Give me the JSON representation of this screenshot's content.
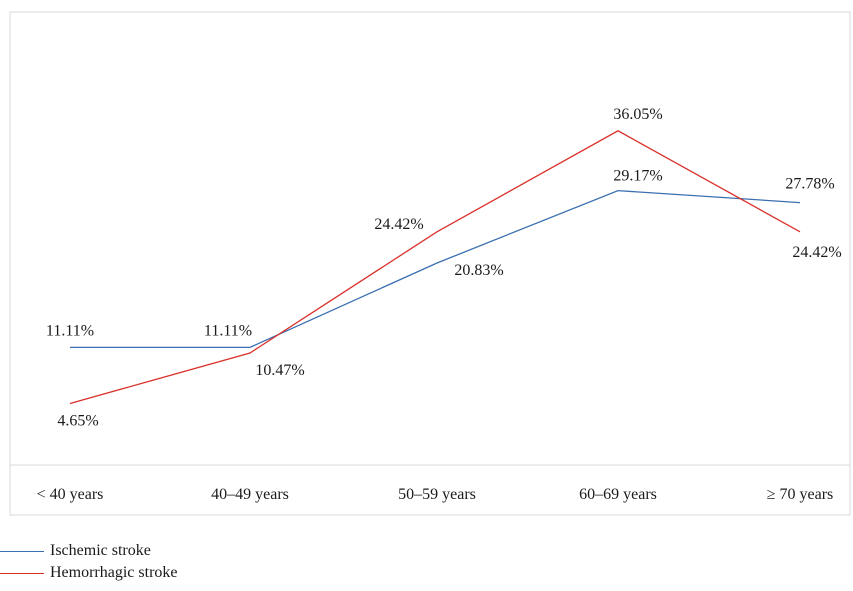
{
  "chart_data": {
    "type": "line",
    "categories": [
      "< 40 years",
      "40–49 years",
      "50–59 years",
      "60–69 years",
      "≥ 70 years"
    ],
    "series": [
      {
        "name": "Ischemic stroke",
        "color": "#3a6fb0",
        "values": [
          11.11,
          11.11,
          20.83,
          29.17,
          27.78
        ],
        "labels": [
          "11.11%",
          "11.11%",
          "20.83%",
          "29.17%",
          "27.78%"
        ]
      },
      {
        "name": "Hemorrhagic stroke",
        "color": "#d9302a",
        "values": [
          4.65,
          10.47,
          24.42,
          36.05,
          24.42
        ],
        "labels": [
          "4.65%",
          "10.47%",
          "24.42%",
          "36.05%",
          "24.42%"
        ]
      }
    ],
    "legend_position": "bottom-left",
    "grid": false
  }
}
